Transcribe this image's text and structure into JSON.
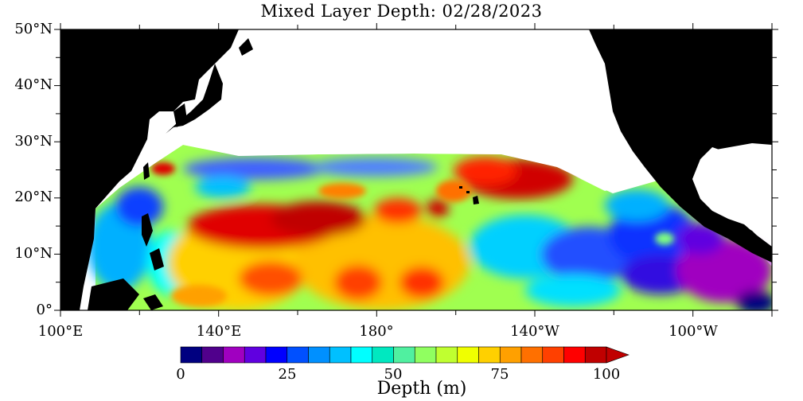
{
  "title": "Mixed Layer Depth: 02/28/2023",
  "lat_labels": [
    "50°N",
    "40°N",
    "30°N",
    "20°N",
    "10°N",
    "0°"
  ],
  "lon_labels": [
    "100°E",
    "140°E",
    "180°",
    "140°W",
    "100°W"
  ],
  "colorbar": {
    "title": "Depth (m)",
    "tick_labels": [
      "0",
      "25",
      "50",
      "75",
      "100"
    ],
    "min": 0,
    "max": 100,
    "step": 5,
    "colors": [
      "#000080",
      "#50008c",
      "#a000c0",
      "#6000e0",
      "#0000ff",
      "#0050ff",
      "#0090ff",
      "#00c0ff",
      "#00ffff",
      "#00e8c0",
      "#50f0a0",
      "#90ff60",
      "#c0ff30",
      "#f0ff00",
      "#ffd000",
      "#ffa000",
      "#ff7000",
      "#ff4000",
      "#ff0000",
      "#c00000"
    ],
    "extend": "max"
  },
  "map": {
    "lat_range": [
      0,
      50
    ],
    "lon_range": [
      "100°E",
      "80°W"
    ],
    "land_color": "#000000",
    "nodata_color": "#ffffff",
    "field": "Mixed Layer Depth"
  }
}
